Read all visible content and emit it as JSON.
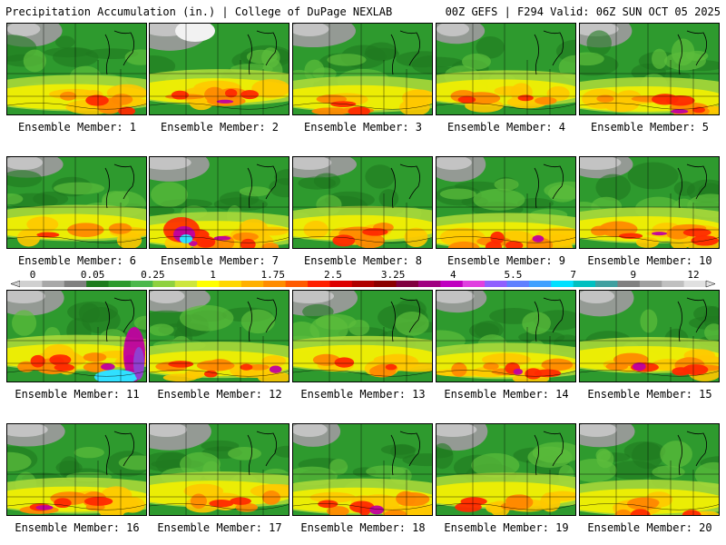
{
  "header": {
    "left_title": "Precipitation Accumulation (in.) | College of DuPage NEXLAB",
    "right_title": "00Z GEFS | F294 Valid: 06Z SUN OCT 05 2025"
  },
  "panels": [
    {
      "label": "Ensemble Member: 1",
      "member": 1
    },
    {
      "label": "Ensemble Member: 2",
      "member": 2
    },
    {
      "label": "Ensemble Member: 3",
      "member": 3
    },
    {
      "label": "Ensemble Member: 4",
      "member": 4
    },
    {
      "label": "Ensemble Member: 5",
      "member": 5
    },
    {
      "label": "Ensemble Member: 6",
      "member": 6
    },
    {
      "label": "Ensemble Member: 7",
      "member": 7
    },
    {
      "label": "Ensemble Member: 8",
      "member": 8
    },
    {
      "label": "Ensemble Member: 9",
      "member": 9
    },
    {
      "label": "Ensemble Member: 10",
      "member": 10
    },
    {
      "label": "Ensemble Member: 11",
      "member": 11
    },
    {
      "label": "Ensemble Member: 12",
      "member": 12
    },
    {
      "label": "Ensemble Member: 13",
      "member": 13
    },
    {
      "label": "Ensemble Member: 14",
      "member": 14
    },
    {
      "label": "Ensemble Member: 15",
      "member": 15
    },
    {
      "label": "Ensemble Member: 16",
      "member": 16
    },
    {
      "label": "Ensemble Member: 17",
      "member": 17
    },
    {
      "label": "Ensemble Member: 18",
      "member": 18
    },
    {
      "label": "Ensemble Member: 19",
      "member": 19
    },
    {
      "label": "Ensemble Member: 20",
      "member": 20
    }
  ],
  "legend": {
    "tick_labels": [
      "0",
      "0.05",
      "0.25",
      "1",
      "1.75",
      "2.5",
      "3.25",
      "4",
      "5.5",
      "7",
      "9",
      "12"
    ],
    "colors": [
      "#d0d0d0",
      "#a8a8a8",
      "#808080",
      "#1e7b1e",
      "#2e9a2e",
      "#4cb84c",
      "#8fd13f",
      "#cde63c",
      "#ffff00",
      "#ffd700",
      "#ffb000",
      "#ff8c00",
      "#ff5a00",
      "#ff2000",
      "#dd0000",
      "#b00000",
      "#8b0000",
      "#800040",
      "#a00080",
      "#c000c0",
      "#e040e0",
      "#9060ff",
      "#6080ff",
      "#40a0ff",
      "#00e0ff",
      "#00c0c0",
      "#40a0a0",
      "#808080",
      "#a0a0a0",
      "#c0c0c0",
      "#e0e0e0"
    ]
  }
}
